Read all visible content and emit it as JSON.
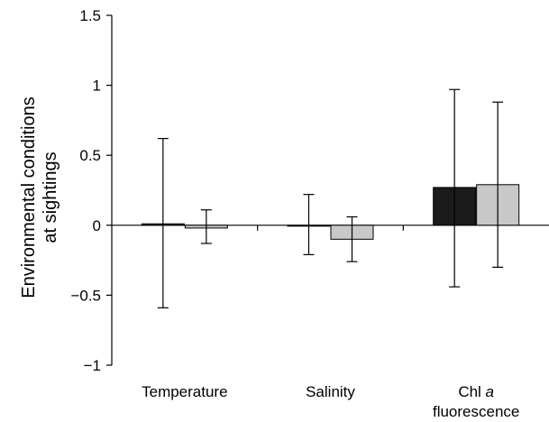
{
  "chart_data": {
    "type": "bar",
    "title": "",
    "xlabel": "",
    "ylabel_lines": [
      "Environmental conditions",
      "at sightings"
    ],
    "ylim": [
      -1,
      1.5
    ],
    "yticks": [
      -1,
      -0.5,
      0,
      0.5,
      1,
      1.5
    ],
    "ytick_labels": [
      "−1",
      "−0.5",
      "0",
      "0.5",
      "1",
      "1.5"
    ],
    "categories": [
      {
        "lines": [
          {
            "text": "Temperature"
          }
        ]
      },
      {
        "lines": [
          {
            "text": "Salinity"
          }
        ]
      },
      {
        "lines": [
          {
            "text": "Chl ",
            "italic": "a"
          },
          {
            "text": "fluorescence"
          }
        ]
      }
    ],
    "series": [
      {
        "color": "#1a1a1a",
        "values": [
          0.01,
          0.0,
          0.27
        ],
        "err_low": [
          -0.59,
          -0.21,
          -0.44
        ],
        "err_high": [
          0.62,
          0.22,
          0.97
        ]
      },
      {
        "color": "#c8c8c8",
        "values": [
          -0.02,
          -0.1,
          0.29
        ],
        "err_low": [
          -0.13,
          -0.26,
          -0.3
        ],
        "err_high": [
          0.11,
          0.06,
          0.88
        ]
      }
    ],
    "grid": false,
    "legend": "none"
  }
}
